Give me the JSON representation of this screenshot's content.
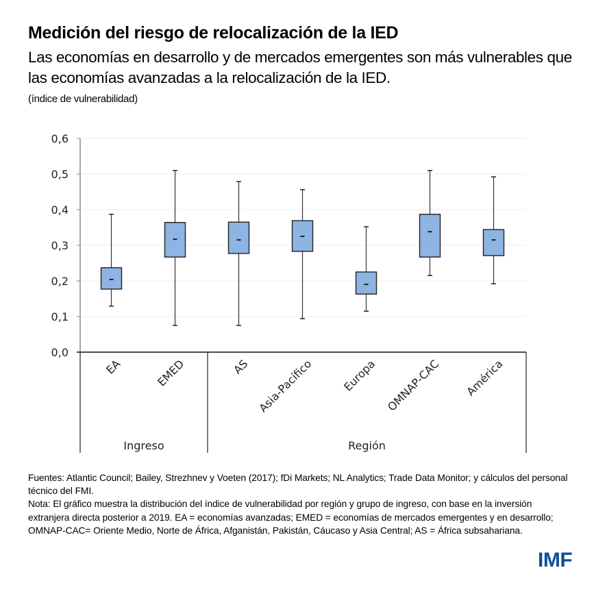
{
  "header": {
    "title": "Medición del riesgo de relocalización de la IED",
    "subtitle": "Las economías en desarrollo y de mercados emergentes son más vulnerables que las economías avanzadas a la relocalización de la IED.",
    "unit": "(índice de vulnerabilidad)"
  },
  "chart_data": {
    "type": "boxplot",
    "title": "Medición del riesgo de relocalización de la IED",
    "ylabel": "índice de vulnerabilidad",
    "xlabel": "",
    "ylim": [
      0,
      0.6
    ],
    "yticks": [
      0,
      0.1,
      0.2,
      0.3,
      0.4,
      0.5,
      0.6
    ],
    "ytick_labels": [
      "0,0",
      "0,1",
      "0,2",
      "0,3",
      "0,4",
      "0,5",
      "0,6"
    ],
    "grid": true,
    "box_color": "#8db4e2",
    "categories": [
      "EA",
      "EMED",
      "AS",
      "Asia-Pacífico",
      "Europa",
      "OMNAP-CAC",
      "América"
    ],
    "groups": [
      {
        "label": "Ingreso",
        "categories": [
          "EA",
          "EMED"
        ]
      },
      {
        "label": "Región",
        "categories": [
          "AS",
          "Asia-Pacífico",
          "Europa",
          "OMNAP-CAC",
          "América"
        ]
      }
    ],
    "series": [
      {
        "name": "EA",
        "min": 0.129,
        "q1": 0.177,
        "median": 0.204,
        "q3": 0.237,
        "max": 0.387
      },
      {
        "name": "EMED",
        "min": 0.075,
        "q1": 0.267,
        "median": 0.317,
        "q3": 0.364,
        "max": 0.51
      },
      {
        "name": "AS",
        "min": 0.075,
        "q1": 0.277,
        "median": 0.315,
        "q3": 0.365,
        "max": 0.479
      },
      {
        "name": "Asia-Pacífico",
        "min": 0.094,
        "q1": 0.283,
        "median": 0.325,
        "q3": 0.369,
        "max": 0.456
      },
      {
        "name": "Europa",
        "min": 0.115,
        "q1": 0.163,
        "median": 0.19,
        "q3": 0.225,
        "max": 0.352
      },
      {
        "name": "OMNAP-CAC",
        "min": 0.215,
        "q1": 0.267,
        "median": 0.338,
        "q3": 0.387,
        "max": 0.51
      },
      {
        "name": "América",
        "min": 0.192,
        "q1": 0.271,
        "median": 0.315,
        "q3": 0.344,
        "max": 0.492
      }
    ]
  },
  "footer": {
    "sources": "Fuentes: Atlantic Council; Bailey, Strezhnev y Voeten (2017); fDi Markets; NL Analytics; Trade Data Monitor; y cálculos del personal técnico del FMI.",
    "note": "Nota: El gráfico muestra la distribución del índice de vulnerabilidad por región y grupo de ingreso, con base en la inversión extranjera directa posterior a 2019. EA = economías avanzadas; EMED = economías de mercados emergentes y en desarrollo; OMNAP-CAC= Oriente Medio, Norte de África, Afganistán, Pakistán, Cáucaso y Asia Central; AS = África subsahariana."
  },
  "logo": "IMF"
}
